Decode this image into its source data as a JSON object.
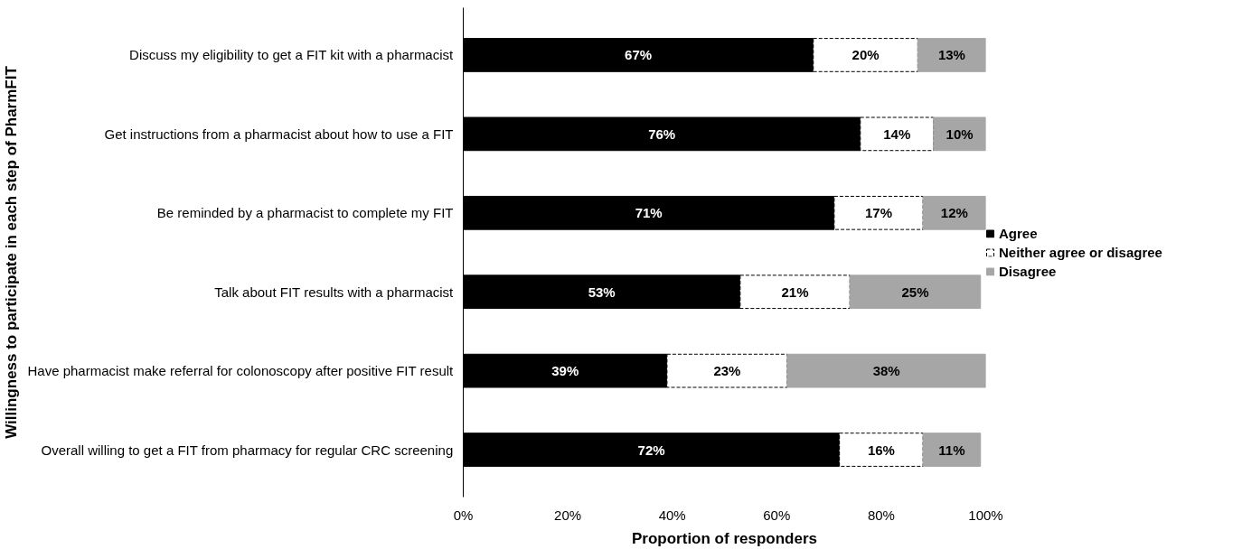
{
  "chart_data": {
    "type": "bar",
    "orientation": "horizontal",
    "stacked": true,
    "data_labels": true,
    "grid": false,
    "legend": "right",
    "xlabel": "Proportion of responders",
    "ylabel": "Willingness to participate in each step of PharmFIT",
    "categories": [
      "Discuss my eligibility to get a FIT kit with a pharmacist",
      "Get instructions from a pharmacist about how to use a FIT",
      "Be reminded by a pharmacist to complete my FIT",
      "Talk about FIT results with a pharmacist",
      "Have pharmacist make referral for colonoscopy after positive FIT result",
      "Overall willing to get a FIT from pharmacy for regular CRC screening"
    ],
    "xlim": [
      0,
      100
    ],
    "xticks": [
      {
        "value": 0,
        "label": "0%"
      },
      {
        "value": 20,
        "label": "20%"
      },
      {
        "value": 40,
        "label": "40%"
      },
      {
        "value": 60,
        "label": "60%"
      },
      {
        "value": 80,
        "label": "80%"
      },
      {
        "value": 100,
        "label": "100%"
      }
    ],
    "series": [
      {
        "name": "Agree",
        "color": "#000000",
        "values": [
          67,
          76,
          71,
          53,
          39,
          72
        ],
        "value_labels": [
          "67%",
          "76%",
          "71%",
          "53%",
          "39%",
          "72%"
        ]
      },
      {
        "name": "Neither agree or disagree",
        "color": "#ffffff",
        "line_style": "dashed",
        "values": [
          20,
          14,
          17,
          21,
          23,
          16
        ],
        "value_labels": [
          "20%",
          "14%",
          "17%",
          "21%",
          "23%",
          "16%"
        ]
      },
      {
        "name": "Disagree",
        "color": "#a6a6a6",
        "values": [
          13,
          10,
          12,
          25,
          38,
          11
        ],
        "value_labels": [
          "13%",
          "10%",
          "12%",
          "25%",
          "38%",
          "11%"
        ]
      }
    ]
  }
}
